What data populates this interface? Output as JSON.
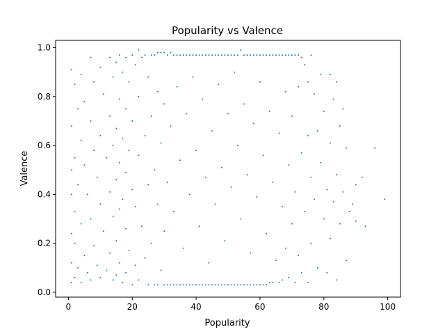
{
  "chart_data": {
    "type": "scatter",
    "title": "Popularity vs Valence",
    "xlabel": "Popularity",
    "ylabel": "Valence",
    "xlim": [
      -4,
      104
    ],
    "ylim": [
      -0.02,
      1.03
    ],
    "xticks": [
      0,
      20,
      40,
      60,
      80,
      100
    ],
    "yticks": [
      0.0,
      0.2,
      0.4,
      0.6,
      0.8,
      1.0
    ],
    "xtick_labels": [
      "0",
      "20",
      "40",
      "60",
      "80",
      "100"
    ],
    "ytick_labels": [
      "0.0",
      "0.2",
      "0.4",
      "0.6",
      "0.8",
      "1.0"
    ],
    "grid": false,
    "legend": "none",
    "marker_color": "#1f77b4",
    "series": [
      {
        "values_note_absent": true,
        "points": [
          [
            1,
            0.91
          ],
          [
            1,
            0.68
          ],
          [
            1,
            0.5
          ],
          [
            1,
            0.4
          ],
          [
            1,
            0.24
          ],
          [
            1,
            0.12
          ],
          [
            1,
            0.04
          ],
          [
            2,
            0.85
          ],
          [
            2,
            0.55
          ],
          [
            2,
            0.33
          ],
          [
            2,
            0.2
          ],
          [
            2,
            0.06
          ],
          [
            3,
            0.75
          ],
          [
            3,
            0.44
          ],
          [
            3,
            0.1
          ],
          [
            4,
            0.89
          ],
          [
            4,
            0.62
          ],
          [
            4,
            0.28
          ],
          [
            4,
            0.04
          ],
          [
            5,
            0.78
          ],
          [
            5,
            0.52
          ],
          [
            5,
            0.15
          ],
          [
            6,
            0.4
          ],
          [
            6,
            0.08
          ],
          [
            7,
            0.96
          ],
          [
            7,
            0.7
          ],
          [
            7,
            0.3
          ],
          [
            7,
            0.05
          ],
          [
            8,
            0.86
          ],
          [
            8,
            0.58
          ],
          [
            8,
            0.19
          ],
          [
            9,
            0.47
          ],
          [
            9,
            0.11
          ],
          [
            10,
            0.92
          ],
          [
            10,
            0.64
          ],
          [
            10,
            0.36
          ],
          [
            10,
            0.06
          ],
          [
            11,
            0.81
          ],
          [
            11,
            0.25
          ],
          [
            12,
            0.55
          ],
          [
            12,
            0.09
          ],
          [
            13,
            0.96
          ],
          [
            13,
            0.72
          ],
          [
            13,
            0.41
          ],
          [
            13,
            0.16
          ],
          [
            14,
            0.88
          ],
          [
            14,
            0.6
          ],
          [
            14,
            0.31
          ],
          [
            14,
            0.05
          ],
          [
            15,
            0.94
          ],
          [
            15,
            0.67
          ],
          [
            15,
            0.46
          ],
          [
            15,
            0.21
          ],
          [
            15,
            0.07
          ],
          [
            16,
            0.97
          ],
          [
            16,
            0.79
          ],
          [
            16,
            0.53
          ],
          [
            16,
            0.34
          ],
          [
            16,
            0.12
          ],
          [
            17,
            0.9
          ],
          [
            17,
            0.63
          ],
          [
            17,
            0.38
          ],
          [
            17,
            0.04
          ],
          [
            18,
            0.96
          ],
          [
            18,
            0.75
          ],
          [
            18,
            0.49
          ],
          [
            18,
            0.26
          ],
          [
            18,
            0.08
          ],
          [
            19,
            0.86
          ],
          [
            19,
            0.58
          ],
          [
            19,
            0.17
          ],
          [
            20,
            0.97
          ],
          [
            20,
            0.7
          ],
          [
            20,
            0.42
          ],
          [
            20,
            0.03
          ],
          [
            21,
            0.93
          ],
          [
            21,
            0.35
          ],
          [
            21,
            0.11
          ],
          [
            22,
            0.99
          ],
          [
            22,
            0.8
          ],
          [
            22,
            0.56
          ],
          [
            22,
            0.05
          ],
          [
            23,
            0.96
          ],
          [
            23,
            0.27
          ],
          [
            24,
            0.97
          ],
          [
            24,
            0.64
          ],
          [
            24,
            0.14
          ],
          [
            25,
            0.88
          ],
          [
            25,
            0.44
          ],
          [
            25,
            0.03
          ],
          [
            26,
            0.97
          ],
          [
            26,
            0.72
          ],
          [
            26,
            0.2
          ],
          [
            27,
            0.97
          ],
          [
            27,
            0.5
          ],
          [
            27,
            0.03
          ],
          [
            28,
            0.98
          ],
          [
            28,
            0.82
          ],
          [
            28,
            0.36
          ],
          [
            28,
            0.03
          ],
          [
            29,
            0.98
          ],
          [
            29,
            0.61
          ],
          [
            29,
            0.09
          ],
          [
            30,
            0.98
          ],
          [
            30,
            0.77
          ],
          [
            30,
            0.25
          ],
          [
            30,
            0.03
          ],
          [
            31,
            0.97
          ],
          [
            31,
            0.45
          ],
          [
            31,
            0.03
          ],
          [
            32,
            0.98
          ],
          [
            32,
            0.68
          ],
          [
            32,
            0.03
          ],
          [
            33,
            0.97
          ],
          [
            33,
            0.33
          ],
          [
            33,
            0.03
          ],
          [
            34,
            0.97
          ],
          [
            34,
            0.84
          ],
          [
            34,
            0.03
          ],
          [
            35,
            0.97
          ],
          [
            35,
            0.54
          ],
          [
            35,
            0.03
          ],
          [
            36,
            0.97
          ],
          [
            36,
            0.18
          ],
          [
            36,
            0.03
          ],
          [
            37,
            0.97
          ],
          [
            37,
            0.73
          ],
          [
            37,
            0.03
          ],
          [
            38,
            0.97
          ],
          [
            38,
            0.4
          ],
          [
            38,
            0.03
          ],
          [
            39,
            0.97
          ],
          [
            39,
            0.88
          ],
          [
            39,
            0.03
          ],
          [
            40,
            0.97
          ],
          [
            40,
            0.58
          ],
          [
            40,
            0.03
          ],
          [
            41,
            0.97
          ],
          [
            41,
            0.27
          ],
          [
            41,
            0.03
          ],
          [
            42,
            0.97
          ],
          [
            42,
            0.79
          ],
          [
            42,
            0.03
          ],
          [
            43,
            0.97
          ],
          [
            43,
            0.47
          ],
          [
            43,
            0.03
          ],
          [
            44,
            0.97
          ],
          [
            44,
            0.12
          ],
          [
            44,
            0.03
          ],
          [
            45,
            0.97
          ],
          [
            45,
            0.66
          ],
          [
            45,
            0.03
          ],
          [
            46,
            0.97
          ],
          [
            46,
            0.36
          ],
          [
            46,
            0.03
          ],
          [
            47,
            0.97
          ],
          [
            47,
            0.85
          ],
          [
            47,
            0.03
          ],
          [
            48,
            0.97
          ],
          [
            48,
            0.51
          ],
          [
            48,
            0.03
          ],
          [
            49,
            0.97
          ],
          [
            49,
            0.21
          ],
          [
            49,
            0.03
          ],
          [
            50,
            0.97
          ],
          [
            50,
            0.73
          ],
          [
            50,
            0.03
          ],
          [
            51,
            0.97
          ],
          [
            51,
            0.43
          ],
          [
            51,
            0.03
          ],
          [
            52,
            0.97
          ],
          [
            52,
            0.9
          ],
          [
            52,
            0.03
          ],
          [
            53,
            0.97
          ],
          [
            53,
            0.6
          ],
          [
            53,
            0.03
          ],
          [
            54,
            0.99
          ],
          [
            54,
            0.3
          ],
          [
            54,
            0.03
          ],
          [
            55,
            0.97
          ],
          [
            55,
            0.77
          ],
          [
            55,
            0.03
          ],
          [
            56,
            0.97
          ],
          [
            56,
            0.48
          ],
          [
            56,
            0.03
          ],
          [
            57,
            0.97
          ],
          [
            57,
            0.16
          ],
          [
            57,
            0.03
          ],
          [
            58,
            0.97
          ],
          [
            58,
            0.69
          ],
          [
            58,
            0.03
          ],
          [
            59,
            0.97
          ],
          [
            59,
            0.39
          ],
          [
            59,
            0.03
          ],
          [
            60,
            0.97
          ],
          [
            60,
            0.86
          ],
          [
            60,
            0.03
          ],
          [
            61,
            0.97
          ],
          [
            61,
            0.56
          ],
          [
            61,
            0.03
          ],
          [
            62,
            0.97
          ],
          [
            62,
            0.24
          ],
          [
            62,
            0.03
          ],
          [
            63,
            0.97
          ],
          [
            63,
            0.74
          ],
          [
            63,
            0.04
          ],
          [
            64,
            0.97
          ],
          [
            64,
            0.45
          ],
          [
            64,
            0.04
          ],
          [
            65,
            0.97
          ],
          [
            65,
            0.13
          ],
          [
            66,
            0.97
          ],
          [
            66,
            0.65
          ],
          [
            66,
            0.04
          ],
          [
            67,
            0.97
          ],
          [
            67,
            0.35
          ],
          [
            67,
            0.05
          ],
          [
            68,
            0.97
          ],
          [
            68,
            0.82
          ],
          [
            68,
            0.18
          ],
          [
            69,
            0.97
          ],
          [
            69,
            0.52
          ],
          [
            69,
            0.06
          ],
          [
            70,
            0.97
          ],
          [
            70,
            0.72
          ],
          [
            70,
            0.28
          ],
          [
            71,
            0.97
          ],
          [
            71,
            0.41
          ],
          [
            71,
            0.04
          ],
          [
            72,
            0.97
          ],
          [
            72,
            0.84
          ],
          [
            72,
            0.15
          ],
          [
            73,
            0.96
          ],
          [
            73,
            0.57
          ],
          [
            73,
            0.08
          ],
          [
            74,
            0.93
          ],
          [
            74,
            0.33
          ],
          [
            75,
            0.86
          ],
          [
            75,
            0.64
          ],
          [
            75,
            0.04
          ],
          [
            76,
            0.97
          ],
          [
            76,
            0.47
          ],
          [
            76,
            0.2
          ],
          [
            77,
            0.81
          ],
          [
            77,
            0.38
          ],
          [
            78,
            0.66
          ],
          [
            78,
            0.1
          ],
          [
            79,
            0.89
          ],
          [
            79,
            0.53
          ],
          [
            80,
            0.74
          ],
          [
            80,
            0.3
          ],
          [
            81,
            0.42
          ],
          [
            81,
            0.08
          ],
          [
            82,
            0.89
          ],
          [
            82,
            0.61
          ],
          [
            82,
            0.22
          ],
          [
            83,
            0.79
          ],
          [
            83,
            0.37
          ],
          [
            84,
            0.86
          ],
          [
            84,
            0.48
          ],
          [
            84,
            0.05
          ],
          [
            85,
            0.68
          ],
          [
            85,
            0.28
          ],
          [
            86,
            0.75
          ],
          [
            86,
            0.41
          ],
          [
            87,
            0.59
          ],
          [
            87,
            0.13
          ],
          [
            88,
            0.33
          ],
          [
            89,
            0.36
          ],
          [
            90,
            0.44
          ],
          [
            90,
            0.29
          ],
          [
            92,
            0.47
          ],
          [
            93,
            0.27
          ],
          [
            96,
            0.59
          ],
          [
            99,
            0.38
          ]
        ]
      }
    ]
  }
}
